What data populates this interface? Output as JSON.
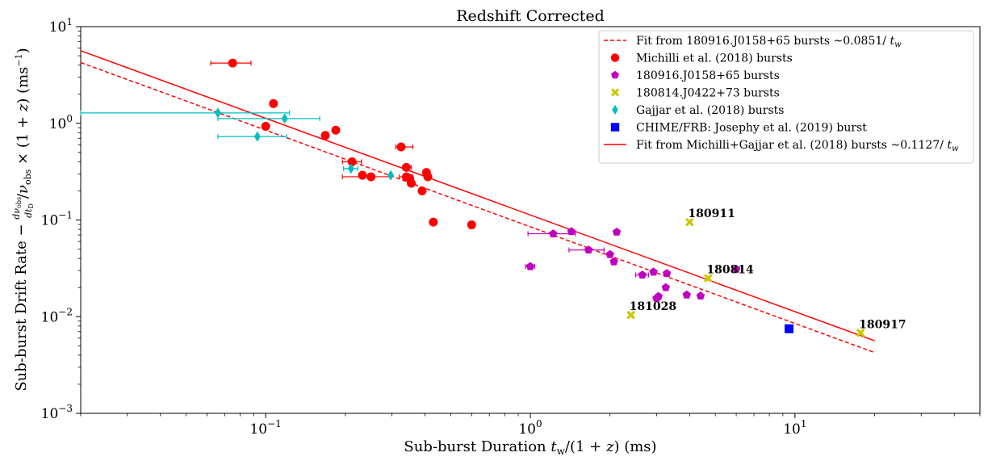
{
  "chart_data": {
    "type": "scatter",
    "title": "Redshift Corrected",
    "xlabel": "Sub-burst Duration t_w/(1+z) (ms)",
    "ylabel": "Sub-burst Drift Rate  -(dν_obs/dt_D)/ν_obs × (1+z) (ms⁻¹)",
    "xscale": "log",
    "yscale": "log",
    "xlim": [
      0.02,
      50
    ],
    "ylim": [
      0.001,
      10
    ],
    "x_ticks": [
      {
        "v": 0.1,
        "base": "10",
        "exp": "−1"
      },
      {
        "v": 1,
        "base": "10",
        "exp": "0"
      },
      {
        "v": 10,
        "base": "10",
        "exp": "1"
      }
    ],
    "y_ticks": [
      {
        "v": 0.001,
        "base": "10",
        "exp": "−3"
      },
      {
        "v": 0.01,
        "base": "10",
        "exp": "−2"
      },
      {
        "v": 0.1,
        "base": "10",
        "exp": "−1"
      },
      {
        "v": 1,
        "base": "10",
        "exp": "0"
      },
      {
        "v": 10,
        "base": "10",
        "exp": "1"
      }
    ],
    "grid": false,
    "legend_position": "top-right",
    "fits": [
      {
        "name": "Fit from 180916.J0158+65 bursts ~0.0851/ t_w",
        "coef": 0.0851,
        "color": "#ff0000",
        "dash": true,
        "x_range": [
          0.02,
          20
        ]
      },
      {
        "name": "Fit from Michilli+Gajjar et al. (2018) bursts ~0.1127/ t_w",
        "coef": 0.1127,
        "color": "#ff0000",
        "dash": false,
        "x_range": [
          0.02,
          20
        ]
      }
    ],
    "series": [
      {
        "name": "Michilli et al. (2018) bursts",
        "marker": "circle",
        "color": "#ff0000",
        "points": [
          {
            "x": 0.075,
            "y": 4.2,
            "xerr": [
              0.062,
              0.088
            ]
          },
          {
            "x": 0.107,
            "y": 1.6,
            "xerr": [
              0.104,
              0.11
            ]
          },
          {
            "x": 0.1,
            "y": 0.93
          },
          {
            "x": 0.168,
            "y": 0.75
          },
          {
            "x": 0.184,
            "y": 0.85,
            "xerr": [
              0.179,
              0.189
            ]
          },
          {
            "x": 0.212,
            "y": 0.4,
            "xerr": [
              0.195,
              0.23
            ]
          },
          {
            "x": 0.232,
            "y": 0.29
          },
          {
            "x": 0.25,
            "y": 0.28,
            "xerr": [
              0.195,
              0.295
            ]
          },
          {
            "x": 0.325,
            "y": 0.57,
            "xerr": [
              0.31,
              0.36
            ]
          },
          {
            "x": 0.34,
            "y": 0.35,
            "xerr": [
              0.33,
              0.355
            ]
          },
          {
            "x": 0.34,
            "y": 0.28,
            "xerr": [
              0.32,
              0.36
            ]
          },
          {
            "x": 0.35,
            "y": 0.27
          },
          {
            "x": 0.355,
            "y": 0.24
          },
          {
            "x": 0.39,
            "y": 0.2
          },
          {
            "x": 0.405,
            "y": 0.31
          },
          {
            "x": 0.41,
            "y": 0.28
          },
          {
            "x": 0.43,
            "y": 0.095
          },
          {
            "x": 0.6,
            "y": 0.089
          }
        ]
      },
      {
        "name": "180916.J0158+65 bursts",
        "marker": "pentagon",
        "color": "#c000c0",
        "points": [
          {
            "x": 1.0,
            "y": 0.033,
            "xerr": [
              0.96,
              1.04
            ]
          },
          {
            "x": 1.22,
            "y": 0.072,
            "xerr": [
              0.98,
              1.48
            ]
          },
          {
            "x": 1.43,
            "y": 0.076
          },
          {
            "x": 1.66,
            "y": 0.049,
            "xerr": [
              1.4,
              1.9
            ]
          },
          {
            "x": 2.0,
            "y": 0.044
          },
          {
            "x": 2.07,
            "y": 0.037
          },
          {
            "x": 2.12,
            "y": 0.075
          },
          {
            "x": 2.65,
            "y": 0.027,
            "xerr": [
              2.5,
              2.8
            ]
          },
          {
            "x": 2.92,
            "y": 0.029
          },
          {
            "x": 3.0,
            "y": 0.0155
          },
          {
            "x": 3.05,
            "y": 0.0162
          },
          {
            "x": 3.25,
            "y": 0.02
          },
          {
            "x": 3.28,
            "y": 0.028
          },
          {
            "x": 3.9,
            "y": 0.0168
          },
          {
            "x": 4.4,
            "y": 0.0164
          },
          {
            "x": 6.0,
            "y": 0.031
          }
        ]
      },
      {
        "name": "180814.J0422+73 bursts",
        "marker": "x",
        "color": "#c8c800",
        "points": [
          {
            "x": 2.4,
            "y": 0.0104,
            "label": "181028"
          },
          {
            "x": 4.0,
            "y": 0.095,
            "label": "180911"
          },
          {
            "x": 4.7,
            "y": 0.025,
            "label": "180814"
          },
          {
            "x": 17.7,
            "y": 0.0068,
            "label": "180917"
          }
        ]
      },
      {
        "name": "Gajjar et al. (2018) bursts",
        "marker": "diamond",
        "color": "#00bfbf",
        "points": [
          {
            "x": 0.066,
            "y": 1.28,
            "xerr": [
              0.02,
              0.123
            ]
          },
          {
            "x": 0.093,
            "y": 0.73,
            "xerr": [
              0.066,
              0.12
            ]
          },
          {
            "x": 0.118,
            "y": 1.12,
            "xerr": [
              0.066,
              0.16
            ]
          },
          {
            "x": 0.21,
            "y": 0.34,
            "xerr": [
              0.197,
              0.223
            ]
          },
          {
            "x": 0.297,
            "y": 0.29
          }
        ]
      },
      {
        "name": "CHIME/FRB: Josephy et al. (2019) burst",
        "marker": "square",
        "color": "#0000ff",
        "points": [
          {
            "x": 9.5,
            "y": 0.0075
          }
        ]
      }
    ]
  }
}
